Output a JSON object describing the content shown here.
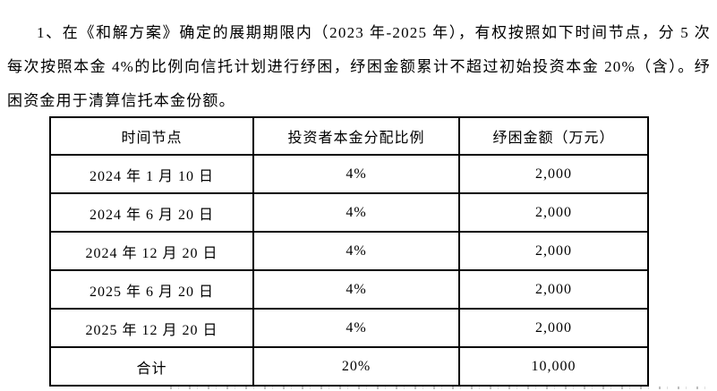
{
  "paragraph": {
    "text": "1、在《和解方案》确定的展期期限内（2023 年-2025 年），有权按照如下时间节点，分 5 次每次按照本金 4%的比例向信托计划进行纾困，纾困金额累计不超过初始投资本金 20%（含）。纾困资金用于清算信托本金份额。"
  },
  "table": {
    "columns": [
      "时间节点",
      "投资者本金分配比例",
      "纾困金额（万元）"
    ],
    "rows": [
      [
        "2024 年 1 月 10 日",
        "4%",
        "2,000"
      ],
      [
        "2024 年 6 月 20 日",
        "4%",
        "2,000"
      ],
      [
        "2024 年 12 月 20 日",
        "4%",
        "2,000"
      ],
      [
        "2025 年 6 月 20 日",
        "4%",
        "2,000"
      ],
      [
        "2025 年 12 月 20 日",
        "4%",
        "2,000"
      ],
      [
        "合计",
        "20%",
        "10,000"
      ]
    ]
  },
  "colors": {
    "page_background": "#ffffff",
    "text": "#000000",
    "table_border": "#000000"
  }
}
